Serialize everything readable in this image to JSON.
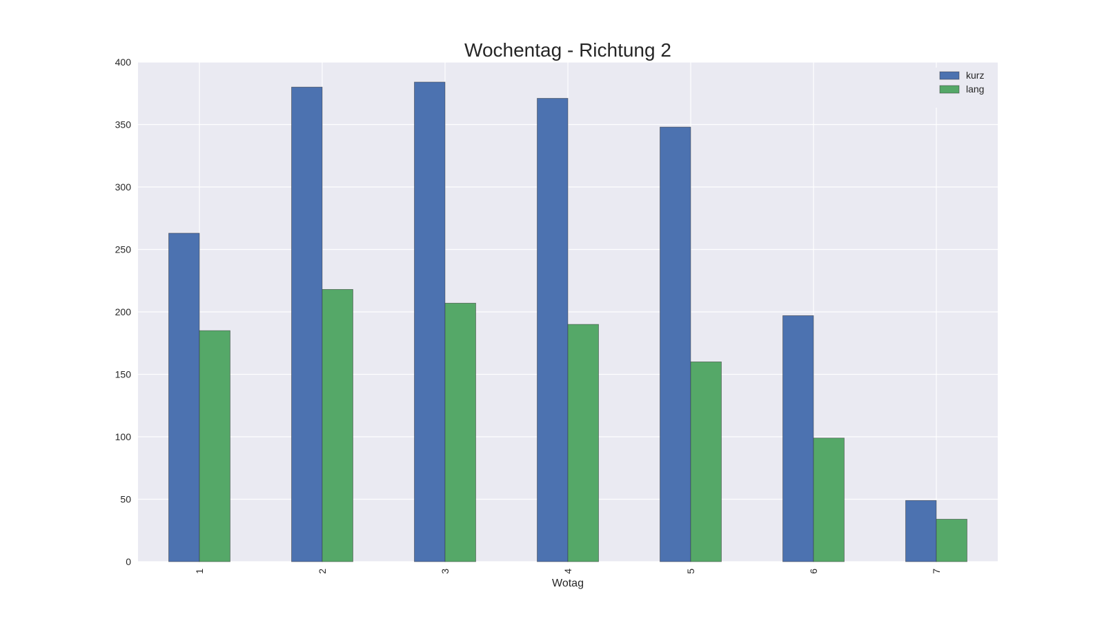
{
  "chart_data": {
    "type": "bar",
    "title": "Wochentag - Richtung 2",
    "xlabel": "Wotag",
    "ylabel": "",
    "categories": [
      "1",
      "2",
      "3",
      "4",
      "5",
      "6",
      "7"
    ],
    "series": [
      {
        "name": "kurz",
        "color": "#4c72b0",
        "values": [
          263,
          380,
          384,
          371,
          348,
          197,
          49
        ]
      },
      {
        "name": "lang",
        "color": "#55a868",
        "values": [
          185,
          218,
          207,
          190,
          160,
          99,
          34
        ]
      }
    ],
    "ylim": [
      0,
      400
    ],
    "yticks": [
      0,
      50,
      100,
      150,
      200,
      250,
      300,
      350,
      400
    ],
    "grid": true,
    "legend_position": "top-right",
    "background_color": "#eaeaf2",
    "x_tick_rotation": "vertical"
  }
}
